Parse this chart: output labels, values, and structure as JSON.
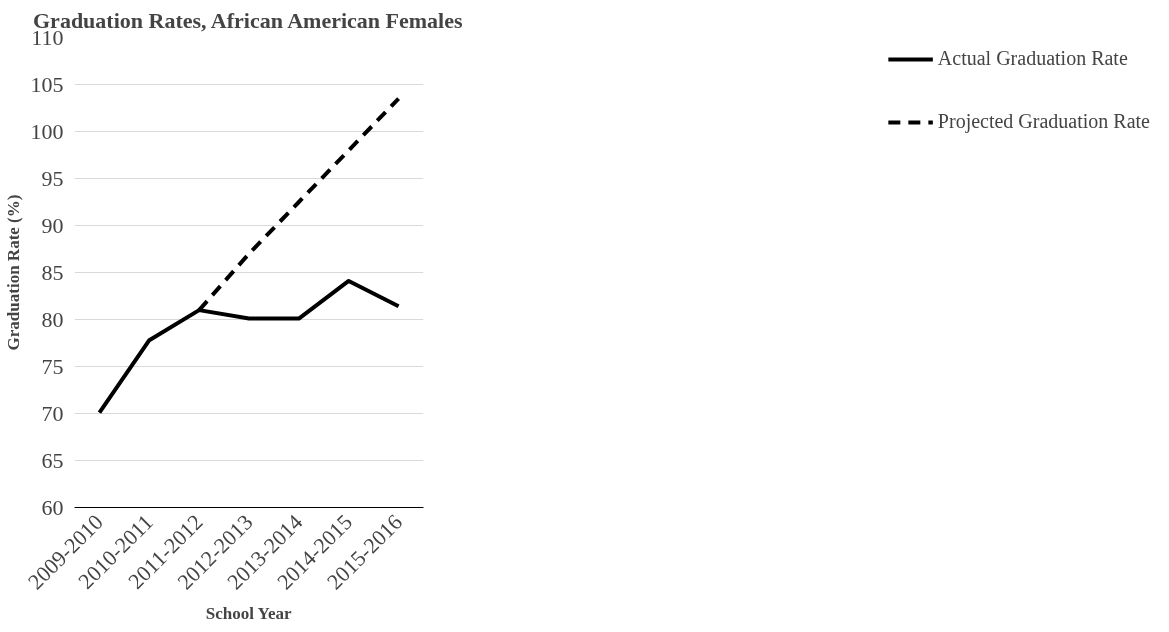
{
  "chart_data": {
    "type": "line",
    "title": "Graduation Rates, African American Females",
    "xlabel": "School Year",
    "ylabel": "Graduation Rate (%)",
    "categories": [
      "2009-2010",
      "2010-2011",
      "2011-2012",
      "2012-2013",
      "2013-2014",
      "2014-2015",
      "2015-2016"
    ],
    "series": [
      {
        "name": "Actual Graduation Rate",
        "color": "#000000",
        "line_style": "solid",
        "values": [
          70.1,
          77.8,
          81,
          80.1,
          80.1,
          84.1,
          81.4
        ]
      },
      {
        "name": "Projected Graduation Rate",
        "color": "#000000",
        "line_style": "dashed",
        "values": [
          null,
          null,
          81,
          87,
          92.5,
          98,
          103.5
        ]
      }
    ],
    "ylim": [
      60,
      110
    ],
    "yticks": [
      60,
      65,
      70,
      75,
      80,
      85,
      90,
      95,
      100,
      105,
      110
    ],
    "grid": "y",
    "legend": "right",
    "marker": "none"
  }
}
